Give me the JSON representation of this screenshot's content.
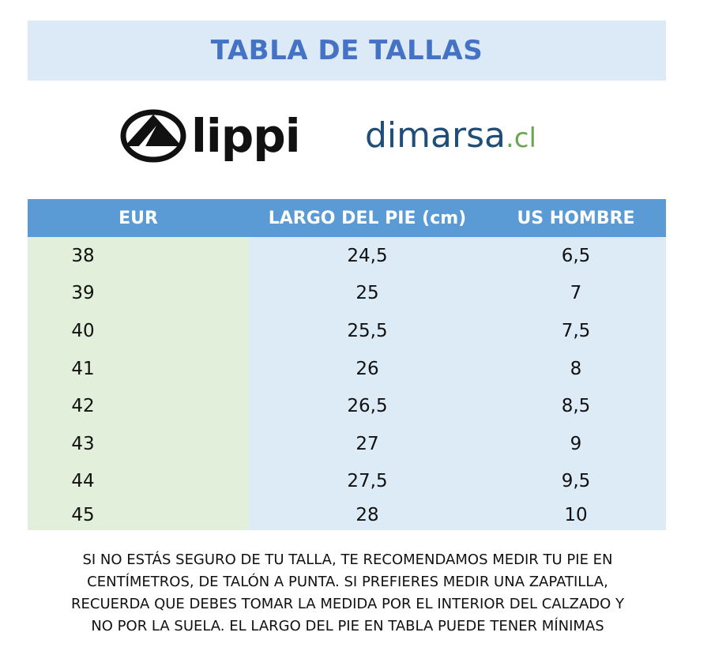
{
  "title": "TABLA DE TALLAS",
  "logos": {
    "lippi": {
      "text": "lippi",
      "icon": "lippi-mountain-icon"
    },
    "dimarsa": {
      "main": "dimarsa",
      "tld": ".cl"
    }
  },
  "table": {
    "headers": [
      "EUR",
      "LARGO DEL PIE (cm)",
      "US HOMBRE"
    ],
    "rows": [
      [
        "38",
        "24,5",
        "6,5"
      ],
      [
        "39",
        "25",
        "7"
      ],
      [
        "40",
        "25,5",
        "7,5"
      ],
      [
        "41",
        "26",
        "8"
      ],
      [
        "42",
        "26,5",
        "8,5"
      ],
      [
        "43",
        "27",
        "9"
      ],
      [
        "44",
        "27,5",
        "9,5"
      ],
      [
        "45",
        "28",
        "10"
      ]
    ]
  },
  "note": {
    "lines": [
      "SI NO ESTÁS SEGURO DE TU TALLA, TE RECOMENDAMOS MEDIR TU PIE EN",
      "CENTÍMETROS, DE TALÓN A PUNTA. SI PREFIERES MEDIR UNA ZAPATILLA,",
      "RECUERDA QUE DEBES TOMAR LA MEDIDA POR EL INTERIOR DEL CALZADO Y",
      "NO POR LA SUELA. EL LARGO DEL PIE EN TABLA PUEDE TENER MÍNIMAS"
    ]
  },
  "colors": {
    "title_band": "#dce9f6",
    "title_text": "#4472c4",
    "header_bg": "#5b9bd5",
    "eur_col_bg": "#e2efda",
    "other_cols_bg": "#ddebf7"
  }
}
